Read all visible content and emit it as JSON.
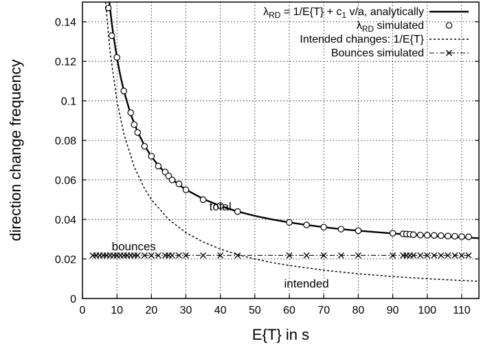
{
  "chart_data": {
    "type": "line",
    "title": "",
    "xlabel": "E{T} in s",
    "ylabel": "direction change frequency",
    "xlim": [
      0,
      115
    ],
    "ylim": [
      0,
      0.15
    ],
    "xticks": [
      0,
      10,
      20,
      30,
      40,
      50,
      60,
      70,
      80,
      90,
      100,
      110
    ],
    "yticks": [
      0,
      0.02,
      0.04,
      0.06,
      0.08,
      0.1,
      0.12,
      0.14
    ],
    "grid": true,
    "legend_position": "top-right",
    "legend": {
      "analytic": {
        "main": "λ",
        "sub": "RD",
        "rest": " = 1/E{T} + c",
        "sub2": "1",
        "rest2": " v/a, analytically"
      },
      "simulated": {
        "main": "λ",
        "sub": "RD",
        "rest": " simulated"
      },
      "intended": "Intended changes: 1/E{T}",
      "bounces": "Bounces simulated"
    },
    "annotations": {
      "total": "total",
      "bounces": "bounces",
      "intended": "intended"
    },
    "series": [
      {
        "key": "analytic",
        "style": "solid",
        "formula": "1/x + 0.0218",
        "x": [
          7.8,
          8.5,
          9,
          10,
          11,
          12,
          14,
          16,
          18,
          20,
          22,
          25,
          28,
          30,
          35,
          40,
          45,
          50,
          55,
          60,
          65,
          70,
          75,
          80,
          85,
          90,
          95,
          100,
          105,
          110,
          115
        ],
        "y": [
          0.15,
          0.1394,
          0.1329,
          0.1218,
          0.1127,
          0.1051,
          0.0932,
          0.0843,
          0.0774,
          0.0718,
          0.0673,
          0.0618,
          0.0575,
          0.0551,
          0.0504,
          0.0468,
          0.044,
          0.0418,
          0.04,
          0.0385,
          0.0372,
          0.0361,
          0.0351,
          0.0343,
          0.0336,
          0.0329,
          0.0323,
          0.0318,
          0.0313,
          0.0309,
          0.0305
        ]
      },
      {
        "key": "simulated",
        "style": "markers",
        "x": [
          7.5,
          8.5,
          10,
          12,
          14,
          15,
          16,
          18,
          20,
          22,
          24,
          25,
          26,
          28,
          30,
          35,
          40,
          45,
          60,
          65,
          70,
          75,
          80,
          90,
          93,
          94,
          95,
          96,
          98,
          100,
          102,
          104,
          106,
          108,
          110,
          112
        ],
        "y": [
          0.147,
          0.133,
          0.122,
          0.105,
          0.094,
          0.088,
          0.084,
          0.077,
          0.072,
          0.067,
          0.064,
          0.062,
          0.06,
          0.058,
          0.055,
          0.05,
          0.047,
          0.044,
          0.0385,
          0.0372,
          0.0361,
          0.0351,
          0.0343,
          0.033,
          0.0327,
          0.0326,
          0.0325,
          0.0323,
          0.0321,
          0.032,
          0.0319,
          0.0318,
          0.0316,
          0.0315,
          0.0313,
          0.0312
        ]
      },
      {
        "key": "intended",
        "style": "dotted",
        "formula": "1/x",
        "x": [
          6.7,
          8,
          10,
          12,
          15,
          18,
          20,
          25,
          30,
          35,
          40,
          45,
          50,
          55,
          60,
          70,
          80,
          90,
          100,
          110,
          115
        ],
        "y": [
          0.15,
          0.125,
          0.1,
          0.0833,
          0.0667,
          0.0556,
          0.05,
          0.04,
          0.0333,
          0.0286,
          0.025,
          0.0222,
          0.02,
          0.0182,
          0.0167,
          0.0143,
          0.0125,
          0.0111,
          0.01,
          0.0091,
          0.0087
        ]
      },
      {
        "key": "bounces",
        "style": "dash-dot-x",
        "x": [
          3,
          4,
          5,
          6,
          7,
          8,
          9,
          10,
          11,
          12,
          13,
          14,
          15,
          16,
          18,
          20,
          22,
          24,
          25,
          26,
          28,
          30,
          35,
          40,
          45,
          60,
          65,
          70,
          75,
          80,
          90,
          93,
          94,
          95,
          96,
          98,
          100,
          102,
          104,
          106,
          108,
          110,
          112
        ],
        "y": [
          0.0218,
          0.0218,
          0.0218,
          0.0218,
          0.0218,
          0.0218,
          0.0218,
          0.0218,
          0.0218,
          0.0218,
          0.0218,
          0.0218,
          0.0218,
          0.0218,
          0.0218,
          0.0218,
          0.0218,
          0.0218,
          0.0218,
          0.0218,
          0.0218,
          0.0218,
          0.0218,
          0.0218,
          0.0218,
          0.0218,
          0.0218,
          0.0218,
          0.0218,
          0.0218,
          0.0218,
          0.0218,
          0.0218,
          0.0218,
          0.0218,
          0.0218,
          0.0218,
          0.0218,
          0.0218,
          0.0218,
          0.0218,
          0.0218,
          0.0218
        ]
      }
    ]
  }
}
